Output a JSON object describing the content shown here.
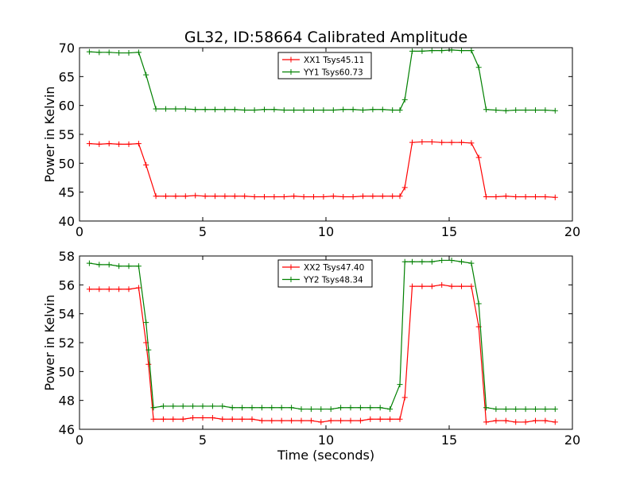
{
  "figure": {
    "title": "GL32, ID:58664 Calibrated Amplitude"
  },
  "chart_data": [
    {
      "type": "line",
      "xlabel": "",
      "ylabel": "Power in Kelvin",
      "xlim": [
        0,
        20
      ],
      "ylim": [
        40,
        70
      ],
      "x_ticks": [
        "0",
        "5",
        "10",
        "15",
        "20"
      ],
      "y_ticks": [
        "40",
        "45",
        "50",
        "55",
        "60",
        "65",
        "70"
      ],
      "grid": false,
      "legend_position": "top-center",
      "x": [
        0.4,
        0.8,
        1.2,
        1.6,
        2.0,
        2.4,
        2.7,
        3.1,
        3.5,
        3.9,
        4.3,
        4.7,
        5.1,
        5.5,
        5.9,
        6.3,
        6.7,
        7.1,
        7.5,
        7.9,
        8.3,
        8.7,
        9.1,
        9.5,
        9.9,
        10.3,
        10.7,
        11.1,
        11.5,
        11.9,
        12.3,
        12.7,
        13.0,
        13.2,
        13.5,
        13.9,
        14.3,
        14.7,
        15.1,
        15.5,
        15.9,
        16.2,
        16.5,
        16.9,
        17.3,
        17.7,
        18.1,
        18.5,
        18.9,
        19.3
      ],
      "series": [
        {
          "name": "XX1 Tsys45.11",
          "color": "#ff0000",
          "values": [
            53.4,
            53.3,
            53.4,
            53.3,
            53.3,
            53.4,
            49.7,
            44.3,
            44.3,
            44.3,
            44.3,
            44.4,
            44.3,
            44.3,
            44.3,
            44.3,
            44.3,
            44.2,
            44.2,
            44.2,
            44.2,
            44.3,
            44.2,
            44.2,
            44.2,
            44.3,
            44.2,
            44.2,
            44.3,
            44.3,
            44.3,
            44.3,
            44.3,
            45.8,
            53.6,
            53.7,
            53.7,
            53.6,
            53.6,
            53.6,
            53.5,
            51.0,
            44.2,
            44.2,
            44.3,
            44.2,
            44.2,
            44.2,
            44.2,
            44.1
          ]
        },
        {
          "name": "YY1 Tsys60.73",
          "color": "#008000",
          "values": [
            69.3,
            69.2,
            69.2,
            69.1,
            69.1,
            69.2,
            65.3,
            59.4,
            59.4,
            59.4,
            59.4,
            59.3,
            59.3,
            59.3,
            59.3,
            59.3,
            59.2,
            59.2,
            59.3,
            59.3,
            59.2,
            59.2,
            59.2,
            59.2,
            59.2,
            59.2,
            59.3,
            59.3,
            59.2,
            59.3,
            59.3,
            59.2,
            59.2,
            61.0,
            69.4,
            69.4,
            69.5,
            69.5,
            69.6,
            69.5,
            69.5,
            66.6,
            59.3,
            59.2,
            59.1,
            59.2,
            59.2,
            59.2,
            59.2,
            59.1
          ]
        }
      ]
    },
    {
      "type": "line",
      "xlabel": "Time (seconds)",
      "ylabel": "Power in Kelvin",
      "xlim": [
        0,
        20
      ],
      "ylim": [
        46,
        58
      ],
      "x_ticks": [
        "0",
        "5",
        "10",
        "15",
        "20"
      ],
      "y_ticks": [
        "46",
        "48",
        "50",
        "52",
        "54",
        "56",
        "58"
      ],
      "grid": false,
      "legend_position": "top-center",
      "x": [
        0.4,
        0.8,
        1.2,
        1.6,
        2.0,
        2.4,
        2.7,
        2.8,
        3.0,
        3.4,
        3.8,
        4.2,
        4.6,
        5.0,
        5.4,
        5.8,
        6.2,
        6.6,
        7.0,
        7.4,
        7.8,
        8.2,
        8.6,
        9.0,
        9.4,
        9.8,
        10.2,
        10.6,
        11.0,
        11.4,
        11.8,
        12.2,
        12.6,
        13.0,
        13.2,
        13.5,
        13.9,
        14.3,
        14.7,
        15.1,
        15.5,
        15.9,
        16.2,
        16.5,
        16.9,
        17.3,
        17.7,
        18.1,
        18.5,
        18.9,
        19.3
      ],
      "series": [
        {
          "name": "XX2 Tsys47.40",
          "color": "#ff0000",
          "values": [
            55.7,
            55.7,
            55.7,
            55.7,
            55.7,
            55.8,
            52.0,
            50.5,
            46.7,
            46.7,
            46.7,
            46.7,
            46.8,
            46.8,
            46.8,
            46.7,
            46.7,
            46.7,
            46.7,
            46.6,
            46.6,
            46.6,
            46.6,
            46.6,
            46.6,
            46.5,
            46.6,
            46.6,
            46.6,
            46.6,
            46.7,
            46.7,
            46.7,
            46.7,
            48.2,
            55.9,
            55.9,
            55.9,
            56.0,
            55.9,
            55.9,
            55.9,
            53.1,
            46.5,
            46.6,
            46.6,
            46.5,
            46.5,
            46.6,
            46.6,
            46.5
          ]
        },
        {
          "name": "YY2 Tsys48.34",
          "color": "#008000",
          "values": [
            57.5,
            57.4,
            57.4,
            57.3,
            57.3,
            57.3,
            53.4,
            51.5,
            47.5,
            47.6,
            47.6,
            47.6,
            47.6,
            47.6,
            47.6,
            47.6,
            47.5,
            47.5,
            47.5,
            47.5,
            47.5,
            47.5,
            47.5,
            47.4,
            47.4,
            47.4,
            47.4,
            47.5,
            47.5,
            47.5,
            47.5,
            47.5,
            47.4,
            49.1,
            57.6,
            57.6,
            57.6,
            57.6,
            57.7,
            57.7,
            57.6,
            57.5,
            54.7,
            47.5,
            47.4,
            47.4,
            47.4,
            47.4,
            47.4,
            47.4,
            47.4
          ]
        }
      ]
    }
  ]
}
